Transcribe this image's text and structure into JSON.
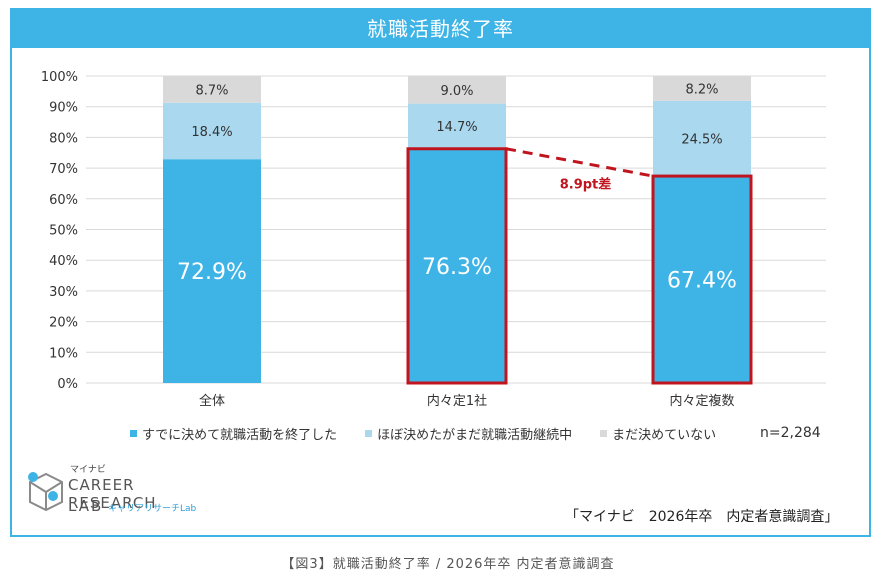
{
  "chart_data": {
    "type": "bar",
    "stacked": true,
    "title": "就職活動終了率",
    "categories": [
      "全体",
      "内々定1社",
      "内々定複数"
    ],
    "series": [
      {
        "name": "すでに決めて就職活動を終了した",
        "values": [
          72.9,
          76.3,
          67.4
        ],
        "labels": [
          "72.9%",
          "76.3%",
          "67.4%"
        ],
        "color": "#3db3e6"
      },
      {
        "name": "ほぼ決めたがまだ就職活動継続中",
        "values": [
          18.4,
          14.7,
          24.5
        ],
        "labels": [
          "18.4%",
          "14.7%",
          "24.5%"
        ],
        "color": "#a9d8ef"
      },
      {
        "name": "まだ決めていない",
        "values": [
          8.7,
          9.0,
          8.2
        ],
        "labels": [
          "8.7%",
          "9.0%",
          "8.2%"
        ],
        "color": "#d9d9d9"
      }
    ],
    "ylim": [
      0,
      100
    ],
    "yticks": [
      "0%",
      "10%",
      "20%",
      "30%",
      "40%",
      "50%",
      "60%",
      "70%",
      "80%",
      "90%",
      "100%"
    ],
    "grid": true,
    "legend_position": "bottom",
    "highlighted_bars": [
      1,
      2
    ],
    "highlight_color": "#c0151e",
    "annotation": {
      "text": "8.9pt差",
      "from": 1,
      "to": 2,
      "color": "#c0151e"
    },
    "n_label": "n=2,284"
  },
  "logo": {
    "top": "マイナビ",
    "line1": "CAREER RESEARCH",
    "line2": "LAB",
    "sub": "キャリアリサーチLab"
  },
  "source": "「マイナビ　2026年卒　内定者意識調査」",
  "caption": "【図3】就職活動終了率 / 2026年卒 内定者意識調査",
  "colors": {
    "accent": "#3db3e6",
    "light": "#a9d8ef",
    "gray": "#d9d9d9",
    "highlight": "#c0151e"
  }
}
